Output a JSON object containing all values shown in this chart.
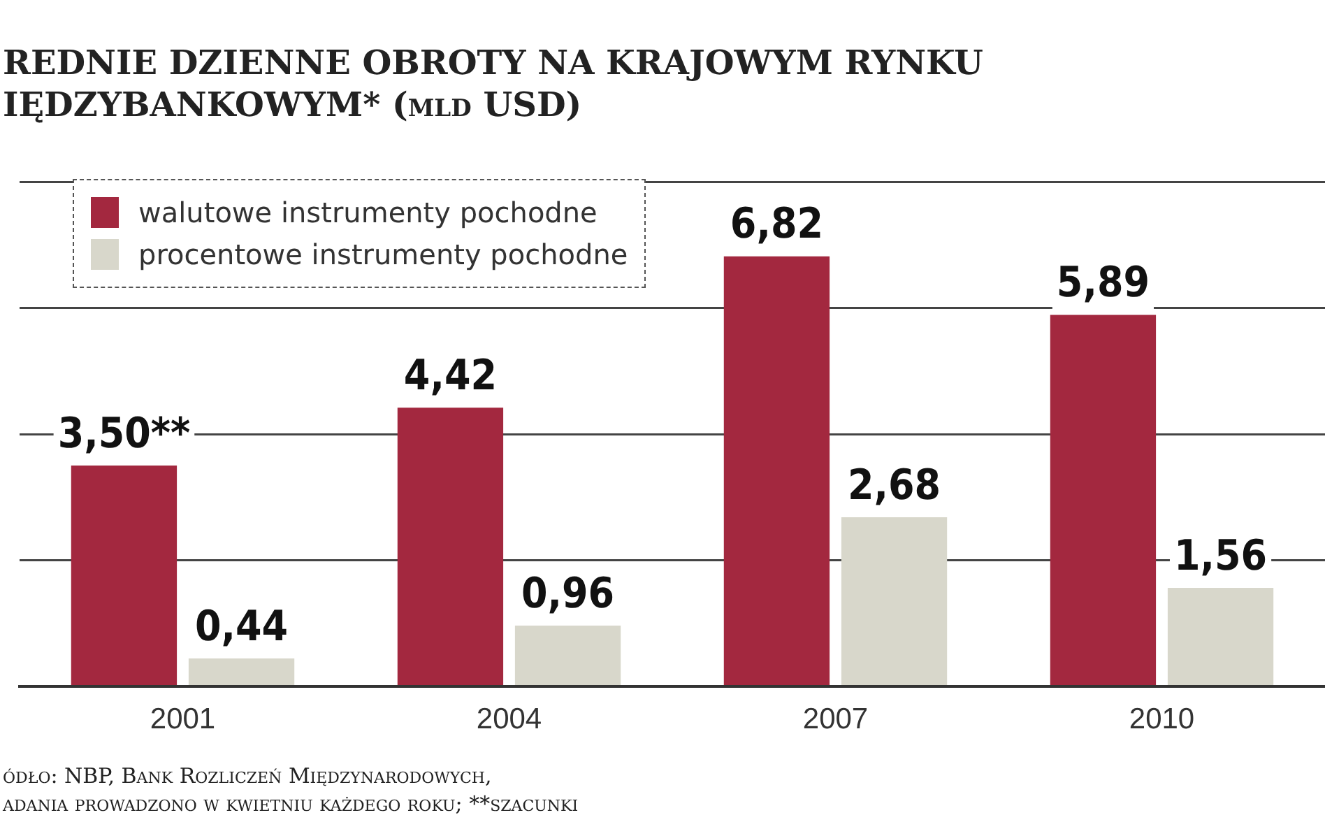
{
  "chart_data": {
    "type": "bar",
    "title": "REDNIE DZIENNE OBROTY NA KRAJOWYM RYNKU IĘDZYBANKOWYM* (mld USD)",
    "categories": [
      "2001",
      "2004",
      "2007",
      "2010"
    ],
    "series": [
      {
        "name": "walutowe instrumenty pochodne",
        "color": "#a3283f",
        "values": [
          3.5,
          4.42,
          6.82,
          5.89
        ],
        "value_labels": [
          "3,50**",
          "4,42",
          "6,82",
          "5,89"
        ]
      },
      {
        "name": "procentowe instrumenty pochodne",
        "color": "#d8d7cb",
        "values": [
          0.44,
          0.96,
          2.68,
          1.56
        ],
        "value_labels": [
          "0,44",
          "0,96",
          "2,68",
          "1,56"
        ]
      }
    ],
    "ylim": [
      0,
      8
    ],
    "yticks": [
      {
        "value": 0,
        "label": null
      },
      {
        "value": 2,
        "label": null
      },
      {
        "value": 4,
        "label": null
      },
      {
        "value": 6,
        "label": null
      },
      {
        "value": 8,
        "label": null
      }
    ],
    "grid": "y",
    "legend": "top left",
    "annotations": [
      "ódło: NBP, Bank Rozliczeń Międzynarodowych,",
      "adania prowadzono w kwietniu każdego roku; **szacunki"
    ]
  }
}
